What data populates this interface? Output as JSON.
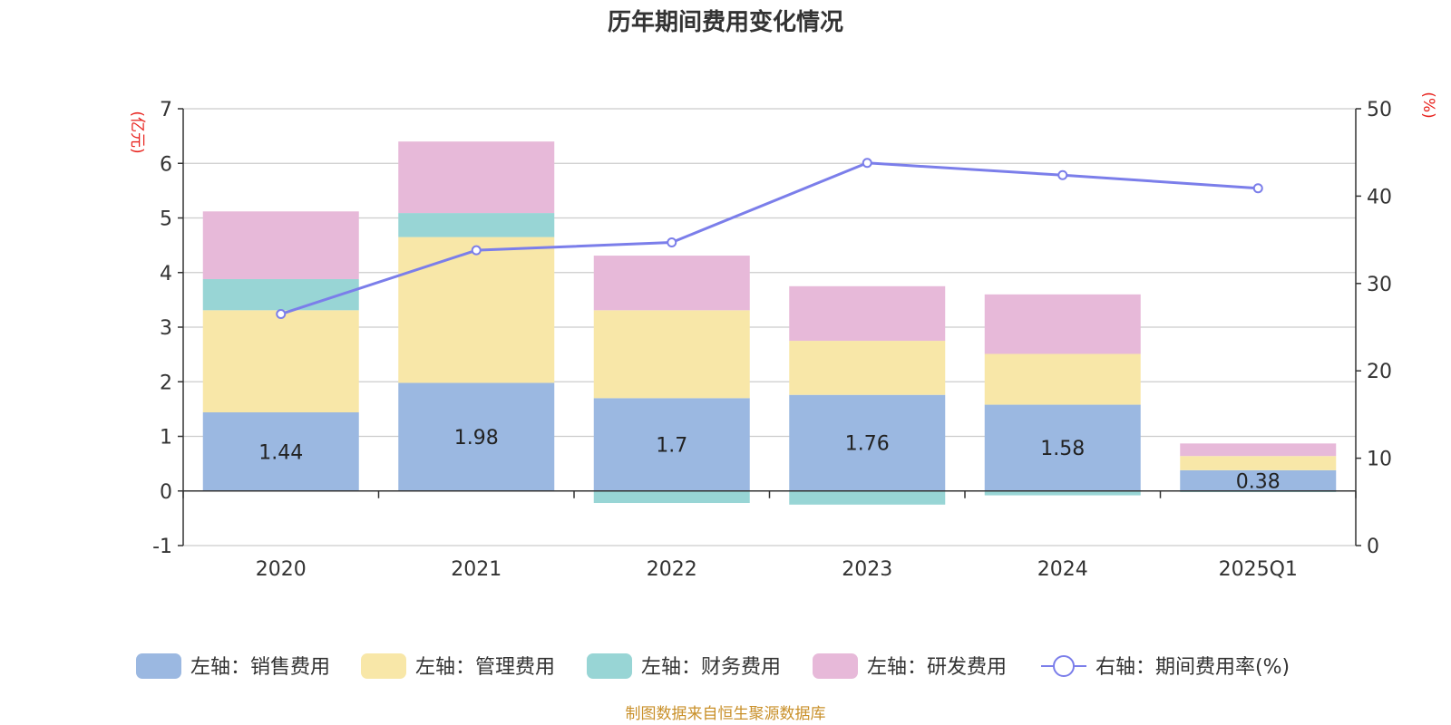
{
  "chart_data": {
    "type": "bar",
    "title": "历年期间费用变化情况",
    "categories": [
      "2020",
      "2021",
      "2022",
      "2023",
      "2024",
      "2025Q1"
    ],
    "left_axis": {
      "unit": "(亿元)",
      "ylim": [
        -1,
        7
      ],
      "ticks": [
        "-1",
        "0",
        "1",
        "2",
        "3",
        "4",
        "5",
        "6",
        "7"
      ]
    },
    "right_axis": {
      "unit": "(%)",
      "ylim": [
        0,
        50
      ],
      "ticks": [
        "0",
        "10",
        "20",
        "30",
        "40",
        "50"
      ]
    },
    "series": [
      {
        "name": "左轴：销售费用",
        "axis": "left",
        "stack": "cost",
        "color": "#9bb8e1",
        "values": [
          1.44,
          1.98,
          1.7,
          1.76,
          1.58,
          0.38
        ],
        "labels": [
          "1.44",
          "1.98",
          "1.7",
          "1.76",
          "1.58",
          "0.38"
        ]
      },
      {
        "name": "左轴：管理费用",
        "axis": "left",
        "stack": "cost",
        "color": "#f8e7a8",
        "values": [
          1.87,
          2.67,
          1.61,
          0.99,
          0.93,
          0.26
        ]
      },
      {
        "name": "左轴：财务费用",
        "axis": "left",
        "stack": "cost",
        "color": "#98d5d5",
        "values": [
          0.57,
          0.44,
          -0.22,
          -0.25,
          -0.08,
          -0.02
        ]
      },
      {
        "name": "左轴：研发费用",
        "axis": "left",
        "stack": "cost",
        "color": "#e7b9d9",
        "values": [
          1.24,
          1.31,
          1.0,
          1.0,
          1.09,
          0.23
        ]
      },
      {
        "name": "右轴：期间费用率(%)",
        "axis": "right",
        "type": "line",
        "color": "#7b7eea",
        "values": [
          26.5,
          33.8,
          34.7,
          43.8,
          42.4,
          40.9
        ]
      }
    ],
    "grid": true,
    "legend_position": "bottom"
  },
  "footer": {
    "source": "制图数据来自恒生聚源数据库"
  }
}
